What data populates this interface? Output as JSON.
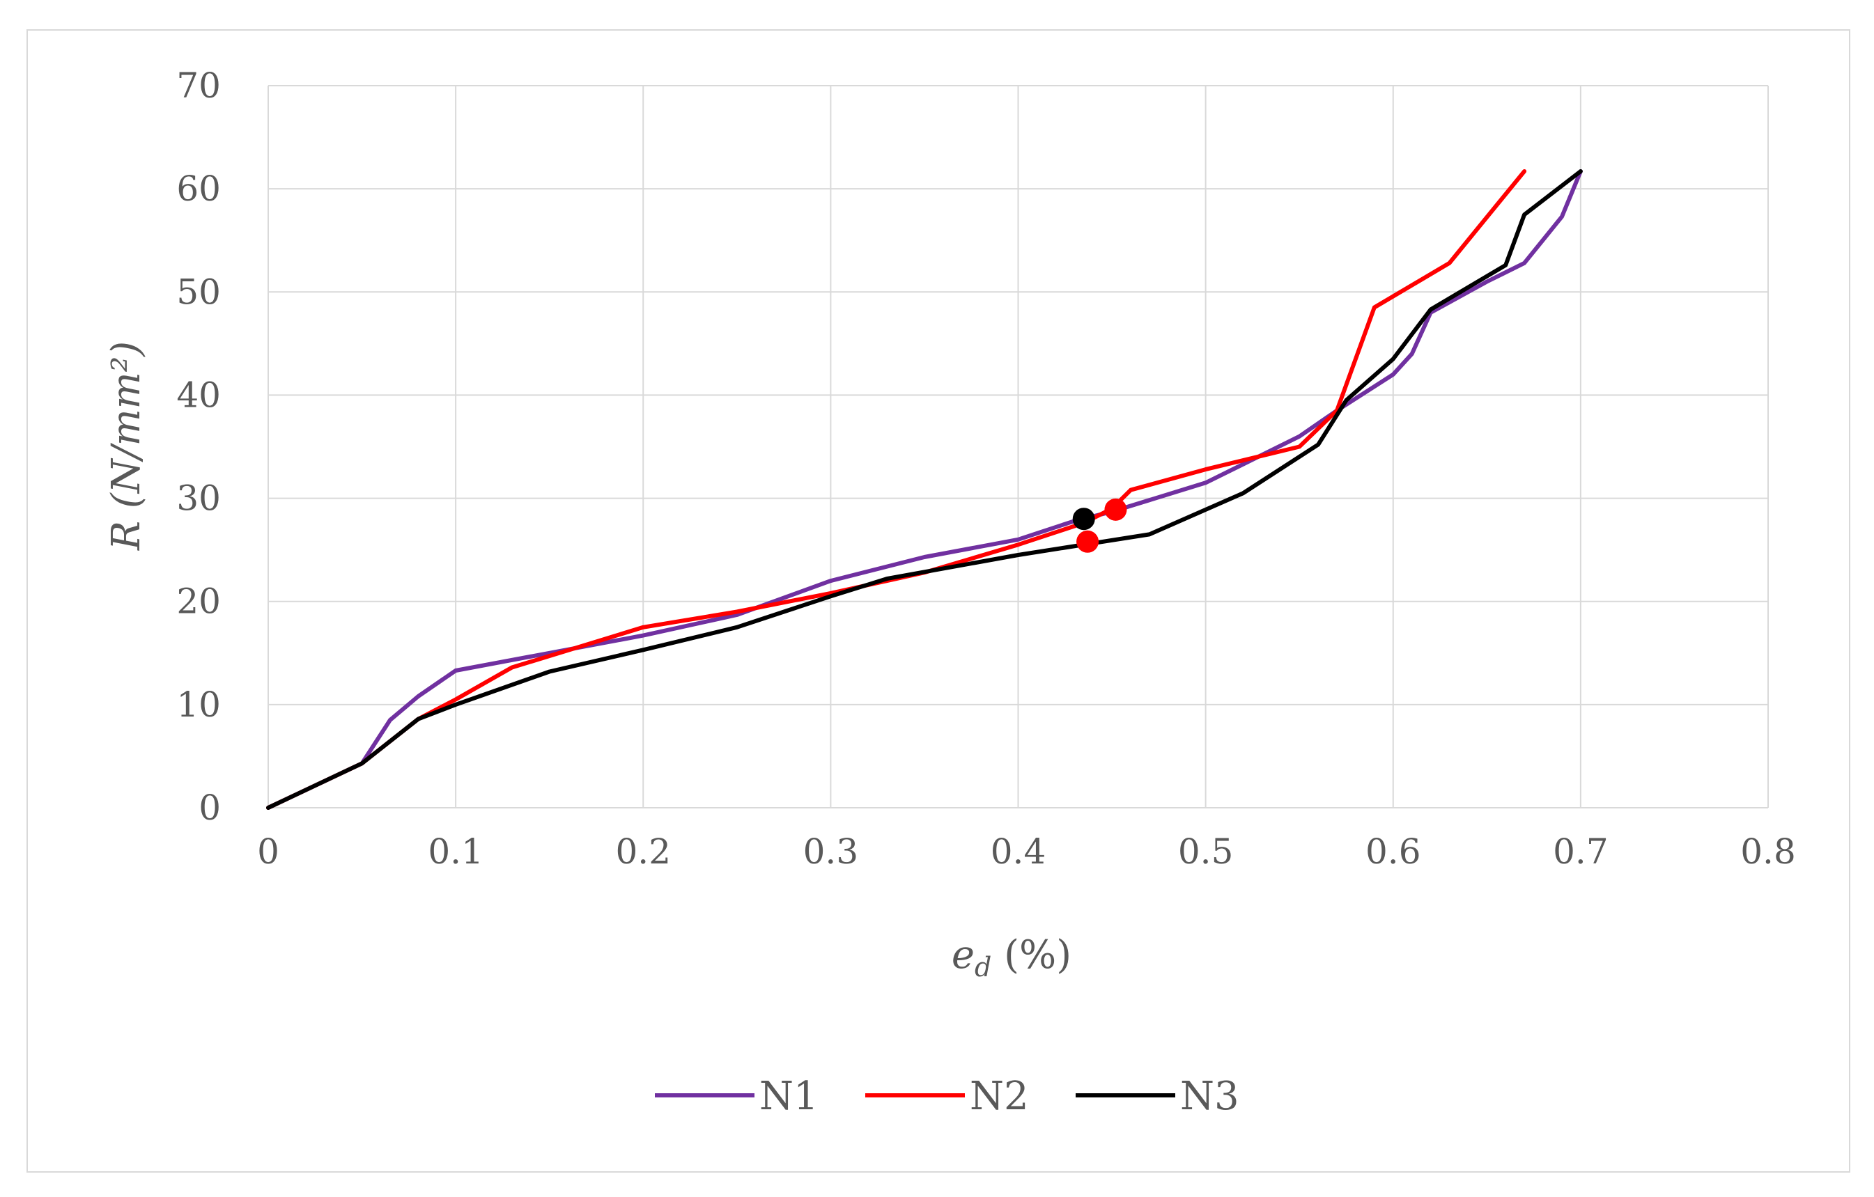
{
  "chart_data": {
    "type": "line",
    "title": "",
    "xlabel": "e_d (%)",
    "xlabel_main": "e",
    "xlabel_sub": "d",
    "xlabel_rest": " (%)",
    "ylabel": "R (N/mm²)",
    "xlim": [
      0,
      0.8
    ],
    "ylim": [
      0,
      70
    ],
    "xticks": [
      "0",
      "0.1",
      "0.2",
      "0.3",
      "0.4",
      "0.5",
      "0.6",
      "0.7",
      "0.8"
    ],
    "yticks": [
      "0",
      "10",
      "20",
      "30",
      "40",
      "50",
      "60",
      "70"
    ],
    "grid": true,
    "legend_position": "bottom",
    "series": [
      {
        "name": "N1",
        "color": "#7030a0",
        "points": [
          [
            0,
            0
          ],
          [
            0.05,
            4.3
          ],
          [
            0.065,
            8.5
          ],
          [
            0.08,
            10.8
          ],
          [
            0.1,
            13.3
          ],
          [
            0.15,
            15
          ],
          [
            0.2,
            16.7
          ],
          [
            0.25,
            18.7
          ],
          [
            0.3,
            22
          ],
          [
            0.35,
            24.3
          ],
          [
            0.4,
            26
          ],
          [
            0.43,
            27.8
          ],
          [
            0.45,
            28.7
          ],
          [
            0.5,
            31.5
          ],
          [
            0.55,
            36
          ],
          [
            0.57,
            38.5
          ],
          [
            0.6,
            42
          ],
          [
            0.61,
            44
          ],
          [
            0.62,
            48
          ],
          [
            0.65,
            51
          ],
          [
            0.67,
            52.8
          ],
          [
            0.69,
            57.3
          ],
          [
            0.7,
            61.7
          ]
        ]
      },
      {
        "name": "N2",
        "color": "#ff0000",
        "points": [
          [
            0,
            0
          ],
          [
            0.05,
            4.3
          ],
          [
            0.08,
            8.6
          ],
          [
            0.1,
            10.5
          ],
          [
            0.13,
            13.6
          ],
          [
            0.2,
            17.5
          ],
          [
            0.25,
            19
          ],
          [
            0.3,
            20.8
          ],
          [
            0.35,
            22.8
          ],
          [
            0.4,
            25.5
          ],
          [
            0.435,
            27.6
          ],
          [
            0.45,
            29
          ],
          [
            0.46,
            30.8
          ],
          [
            0.5,
            32.8
          ],
          [
            0.55,
            35
          ],
          [
            0.57,
            38.5
          ],
          [
            0.59,
            48.5
          ],
          [
            0.63,
            52.8
          ],
          [
            0.67,
            61.7
          ]
        ]
      },
      {
        "name": "N3",
        "color": "#000000",
        "points": [
          [
            0,
            0
          ],
          [
            0.05,
            4.3
          ],
          [
            0.08,
            8.6
          ],
          [
            0.1,
            10
          ],
          [
            0.15,
            13.2
          ],
          [
            0.2,
            15.3
          ],
          [
            0.25,
            17.5
          ],
          [
            0.3,
            20.5
          ],
          [
            0.33,
            22.2
          ],
          [
            0.4,
            24.5
          ],
          [
            0.435,
            25.5
          ],
          [
            0.47,
            26.5
          ],
          [
            0.52,
            30.5
          ],
          [
            0.56,
            35.2
          ],
          [
            0.575,
            39.5
          ],
          [
            0.6,
            43.5
          ],
          [
            0.62,
            48.3
          ],
          [
            0.66,
            52.6
          ],
          [
            0.67,
            57.5
          ],
          [
            0.7,
            61.7
          ]
        ]
      }
    ],
    "markers": [
      {
        "x": 0.435,
        "y": 28,
        "color": "#000000"
      },
      {
        "x": 0.437,
        "y": 25.8,
        "color": "#ff0000"
      },
      {
        "x": 0.452,
        "y": 28.9,
        "color": "#ff0000"
      }
    ]
  }
}
